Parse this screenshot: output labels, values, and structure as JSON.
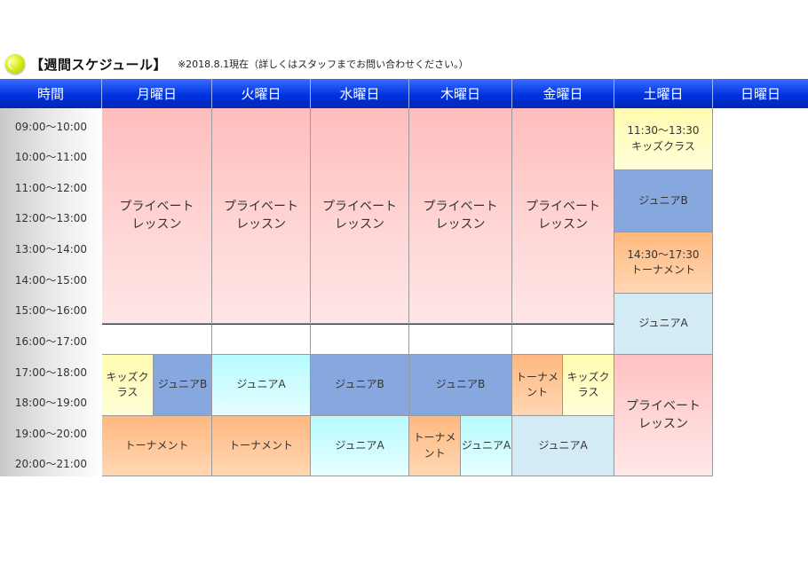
{
  "header": {
    "title": "【週間スケジュール】",
    "note": "※2018.8.1現在（詳しくはスタッフまでお問い合わせください。）"
  },
  "columns": [
    "時間",
    "月曜日",
    "火曜日",
    "水曜日",
    "木曜日",
    "金曜日",
    "土曜日",
    "日曜日"
  ],
  "times": [
    "09:00～10:00",
    "10:00～11:00",
    "11:00～12:00",
    "12:00～13:00",
    "13:00～14:00",
    "14:00～15:00",
    "15:00～16:00",
    "16:00～17:00",
    "17:00～18:00",
    "18:00～19:00",
    "19:00～20:00",
    "20:00～21:00"
  ],
  "cells": {
    "mon_private": "プライベート\nレッスン",
    "tue_private": "プライベート\nレッスン",
    "wed_private": "プライベート\nレッスン",
    "thu_private": "プライベート\nレッスン",
    "fri_private": "プライベート\nレッスン",
    "mon_kids": "キッズクラス",
    "mon_junior_b": "ジュニアB",
    "tue_junior_a": "ジュニアA",
    "wed_junior_b": "ジュニアB",
    "thu_junior_b": "ジュニアB",
    "fri_tournament": "トーナメント",
    "fri_kids": "キッズクラス",
    "mon_tournament": "トーナメント",
    "tue_tournament": "トーナメント",
    "wed_junior_a": "ジュニアA",
    "thu_tournament": "トーナメント",
    "thu_junior_a": "ジュニアA",
    "fri_junior_a": "ジュニアA",
    "sat_kids": "11:30～13:30\nキッズクラス",
    "sat_junior_b": "ジュニアB",
    "sat_tournament": "14:30～17:30\nトーナメント",
    "sat_junior_a": "ジュニアA",
    "sat_private": "プライベート\nレッスン"
  }
}
